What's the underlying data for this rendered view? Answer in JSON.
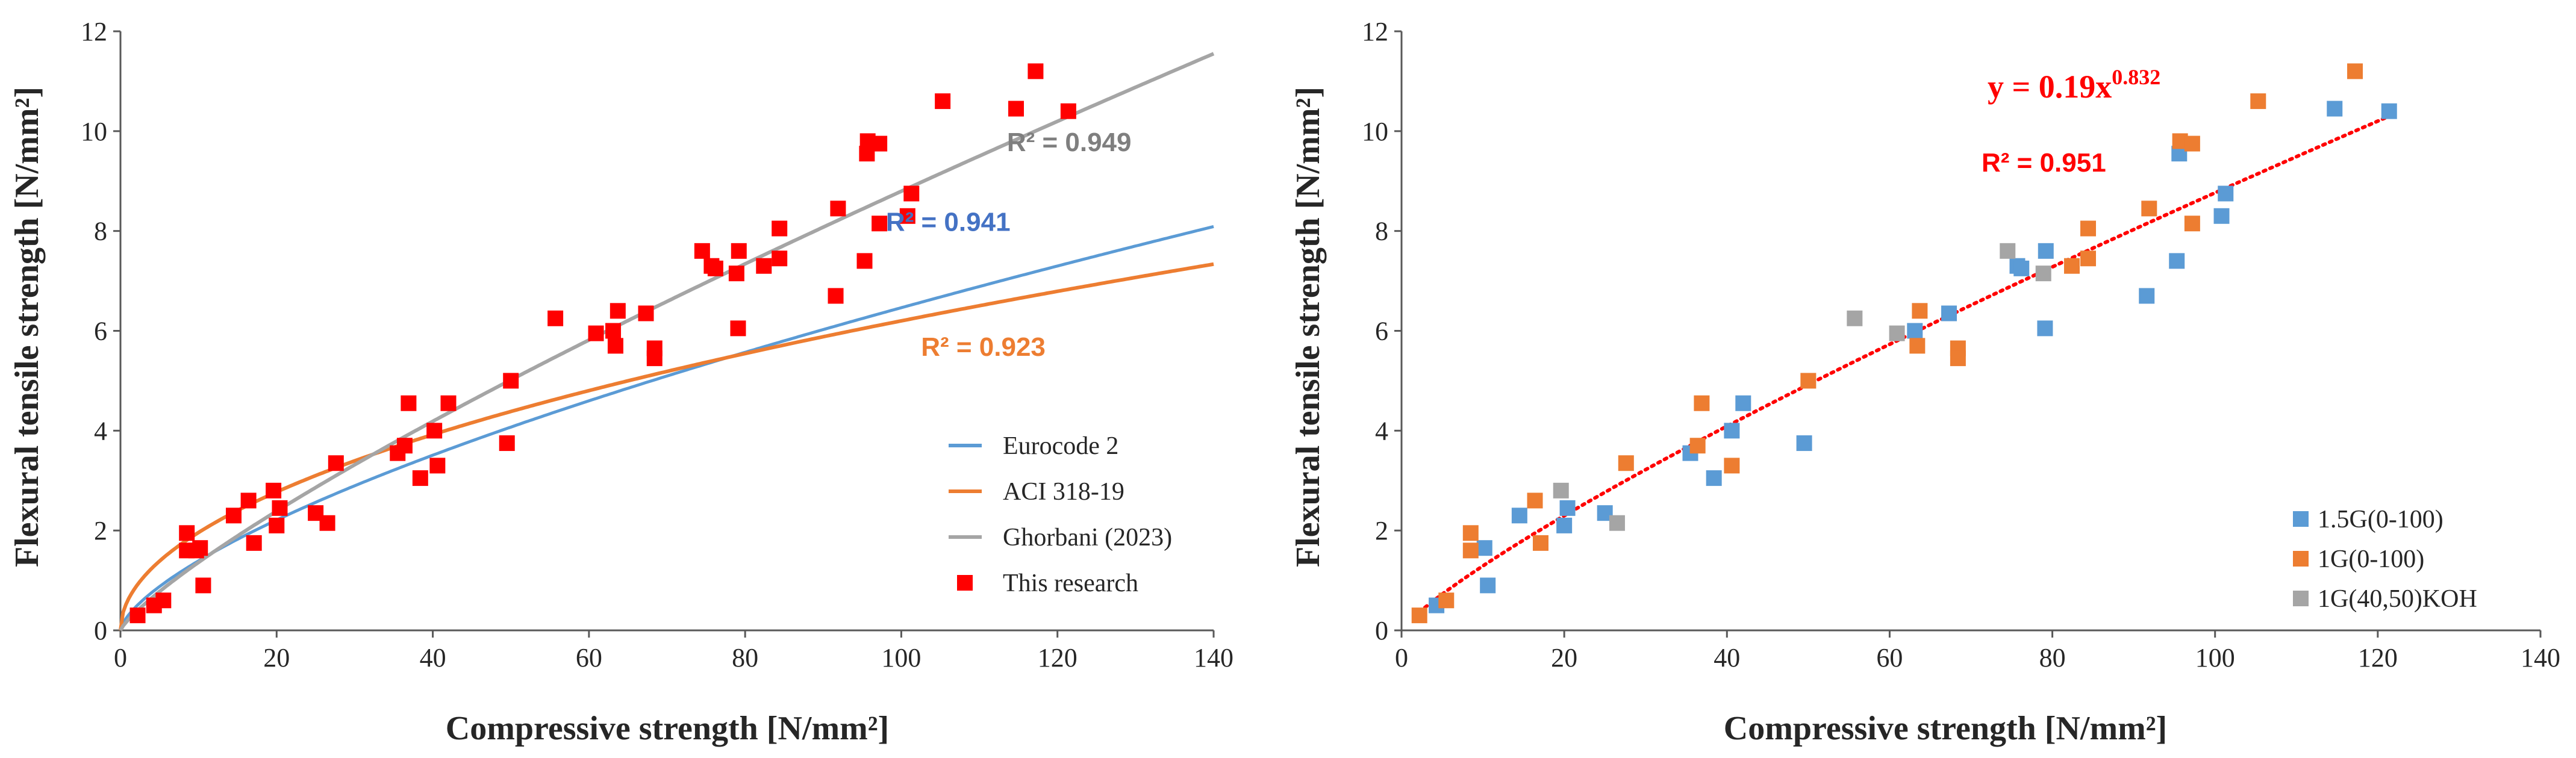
{
  "chart_data": [
    {
      "type": "scatter",
      "xlabel": "Compressive strength [N/mm²]",
      "ylabel": "Flexural tensile strength [N/mm²]",
      "xlim": [
        0,
        140
      ],
      "ylim": [
        0,
        12
      ],
      "xticks": [
        "0",
        "20",
        "40",
        "60",
        "80",
        "100",
        "120",
        "140"
      ],
      "yticks": [
        "0",
        "2",
        "4",
        "6",
        "8",
        "10",
        "12"
      ],
      "legend_position": "bottom-right",
      "series": [
        {
          "name": "Eurocode 2",
          "kind": "line",
          "color": "#5b9bd5"
        },
        {
          "name": "ACI 318-19",
          "kind": "line",
          "color": "#ed7d31"
        },
        {
          "name": "Ghorbani (2023)",
          "kind": "line",
          "color": "#a5a5a5"
        },
        {
          "name": "This research",
          "kind": "marker",
          "color": "#ff0000"
        }
      ],
      "annotations": [
        {
          "text": "R² = 0.949",
          "color": "#7f7f7f",
          "x": 121.5,
          "y": 9.6
        },
        {
          "text": "R² = 0.941",
          "color": "#4472c4",
          "x": 106,
          "y": 8.0
        },
        {
          "text": "R² = 0.923",
          "color": "#ed7d31",
          "x": 110.5,
          "y": 5.5
        }
      ],
      "points": [
        [
          2.2,
          0.3
        ],
        [
          4.3,
          0.5
        ],
        [
          5.5,
          0.6
        ],
        [
          8.5,
          1.95
        ],
        [
          8.5,
          1.6
        ],
        [
          9.7,
          1.6
        ],
        [
          10.2,
          1.65
        ],
        [
          10.6,
          0.9
        ],
        [
          14.5,
          2.3
        ],
        [
          16.4,
          2.6
        ],
        [
          17.1,
          1.75
        ],
        [
          19.6,
          2.8
        ],
        [
          20.0,
          2.1
        ],
        [
          20.4,
          2.45
        ],
        [
          25.0,
          2.35
        ],
        [
          26.5,
          2.15
        ],
        [
          27.6,
          3.35
        ],
        [
          35.5,
          3.55
        ],
        [
          36.4,
          3.7
        ],
        [
          36.9,
          4.55
        ],
        [
          38.4,
          3.05
        ],
        [
          40.2,
          4.0
        ],
        [
          40.6,
          3.3
        ],
        [
          42.0,
          4.55
        ],
        [
          49.5,
          3.75
        ],
        [
          50.0,
          5.0
        ],
        [
          55.7,
          6.25
        ],
        [
          60.9,
          5.95
        ],
        [
          63.1,
          6.0
        ],
        [
          63.4,
          5.7
        ],
        [
          63.7,
          6.4
        ],
        [
          67.3,
          6.35
        ],
        [
          68.4,
          5.65
        ],
        [
          68.4,
          5.45
        ],
        [
          74.5,
          7.6
        ],
        [
          75.7,
          7.3
        ],
        [
          76.2,
          7.25
        ],
        [
          78.9,
          7.15
        ],
        [
          79.1,
          6.05
        ],
        [
          79.2,
          7.6
        ],
        [
          82.4,
          7.3
        ],
        [
          84.4,
          7.45
        ],
        [
          84.4,
          8.05
        ],
        [
          91.6,
          6.7
        ],
        [
          91.9,
          8.45
        ],
        [
          95.3,
          7.4
        ],
        [
          95.6,
          9.55
        ],
        [
          95.7,
          9.8
        ],
        [
          97.2,
          9.75
        ],
        [
          97.2,
          8.15
        ],
        [
          100.8,
          8.3
        ],
        [
          101.3,
          8.75
        ],
        [
          105.3,
          10.6
        ],
        [
          114.7,
          10.45
        ],
        [
          117.2,
          11.2
        ],
        [
          121.4,
          10.4
        ]
      ]
    },
    {
      "type": "scatter",
      "xlabel": "Compressive strength [N/mm²]",
      "ylabel": "Flexural tensile strength [N/mm²]",
      "xlim": [
        0,
        140
      ],
      "ylim": [
        0,
        12
      ],
      "xticks": [
        "0",
        "20",
        "40",
        "60",
        "80",
        "100",
        "120",
        "140"
      ],
      "yticks": [
        "0",
        "2",
        "4",
        "6",
        "8",
        "10",
        "12"
      ],
      "legend_position": "bottom-right",
      "trendline": {
        "equation": "y = 0.19x",
        "exponent": "0.832",
        "r2": "R² = 0.951",
        "a": 0.19,
        "b": 0.832,
        "color": "#ff0000"
      },
      "series": [
        {
          "name": "1.5G(0-100)",
          "color": "#5b9bd5",
          "points": [
            [
              4.3,
              0.5
            ],
            [
              10.2,
              1.65
            ],
            [
              10.6,
              0.9
            ],
            [
              14.5,
              2.3
            ],
            [
              20.0,
              2.1
            ],
            [
              20.4,
              2.45
            ],
            [
              25.0,
              2.35
            ],
            [
              35.5,
              3.55
            ],
            [
              38.4,
              3.05
            ],
            [
              40.6,
              4.0
            ],
            [
              42.0,
              4.55
            ],
            [
              49.5,
              3.75
            ],
            [
              63.1,
              6.0
            ],
            [
              67.3,
              6.35
            ],
            [
              75.7,
              7.3
            ],
            [
              76.2,
              7.25
            ],
            [
              79.1,
              6.05
            ],
            [
              79.2,
              7.6
            ],
            [
              91.6,
              6.7
            ],
            [
              95.3,
              7.4
            ],
            [
              95.6,
              9.55
            ],
            [
              100.8,
              8.3
            ],
            [
              101.3,
              8.75
            ],
            [
              114.7,
              10.45
            ],
            [
              121.4,
              10.4
            ]
          ]
        },
        {
          "name": "1G(0-100)",
          "color": "#ed7d31",
          "points": [
            [
              2.2,
              0.3
            ],
            [
              5.5,
              0.6
            ],
            [
              8.5,
              1.95
            ],
            [
              8.5,
              1.6
            ],
            [
              16.4,
              2.6
            ],
            [
              17.1,
              1.75
            ],
            [
              27.6,
              3.35
            ],
            [
              36.4,
              3.7
            ],
            [
              36.9,
              4.55
            ],
            [
              40.6,
              3.3
            ],
            [
              50.0,
              5.0
            ],
            [
              63.4,
              5.7
            ],
            [
              63.7,
              6.4
            ],
            [
              68.4,
              5.65
            ],
            [
              68.4,
              5.45
            ],
            [
              82.4,
              7.3
            ],
            [
              84.4,
              7.45
            ],
            [
              84.4,
              8.05
            ],
            [
              91.9,
              8.45
            ],
            [
              95.7,
              9.8
            ],
            [
              97.2,
              9.75
            ],
            [
              97.2,
              8.15
            ],
            [
              105.3,
              10.6
            ],
            [
              117.2,
              11.2
            ]
          ]
        },
        {
          "name": "1G(40,50)KOH",
          "color": "#a5a5a5",
          "points": [
            [
              19.6,
              2.8
            ],
            [
              26.5,
              2.15
            ],
            [
              55.7,
              6.25
            ],
            [
              60.9,
              5.95
            ],
            [
              74.5,
              7.6
            ],
            [
              78.9,
              7.15
            ]
          ]
        }
      ]
    }
  ]
}
